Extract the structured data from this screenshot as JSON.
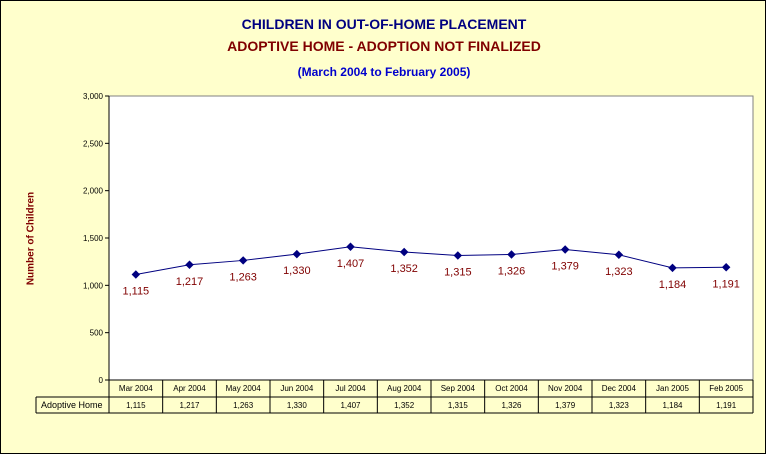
{
  "title": "CHILDREN IN OUT-OF-HOME PLACEMENT",
  "subtitle": "ADOPTIVE HOME -  ADOPTION NOT FINALIZED",
  "subtitle2": "(March 2004 to February 2005)",
  "colors": {
    "background": "#ffffcc",
    "plot": "#ffffff",
    "line": "#000080",
    "labels": "#800000",
    "title": "#000080",
    "subtitle": "#800000",
    "subtitle2": "#0000cc"
  },
  "chart_data": {
    "type": "line",
    "title": "CHILDREN IN OUT-OF-HOME PLACEMENT",
    "subtitle": "ADOPTIVE HOME -  ADOPTION NOT FINALIZED",
    "ylabel": "Number of Children",
    "xlabel": "",
    "ylim": [
      0,
      3000
    ],
    "yticks": [
      0,
      500,
      1000,
      1500,
      2000,
      2500,
      3000
    ],
    "ytick_labels": [
      "0",
      "500",
      "1,000",
      "1,500",
      "2,000",
      "2,500",
      "3,000"
    ],
    "grid": false,
    "categories": [
      "Mar 2004",
      "Apr 2004",
      "May 2004",
      "Jun 2004",
      "Jul 2004",
      "Aug 2004",
      "Sep 2004",
      "Oct 2004",
      "Nov 2004",
      "Dec 2004",
      "Jan 2005",
      "Feb 2005"
    ],
    "series": [
      {
        "name": "Adoptive Home",
        "values": [
          1115,
          1217,
          1263,
          1330,
          1407,
          1352,
          1315,
          1326,
          1379,
          1323,
          1184,
          1191
        ],
        "labels": [
          "1,115",
          "1,217",
          "1,263",
          "1,330",
          "1,407",
          "1,352",
          "1,315",
          "1,326",
          "1,379",
          "1,323",
          "1,184",
          "1,191"
        ]
      }
    ],
    "data_table": true
  }
}
